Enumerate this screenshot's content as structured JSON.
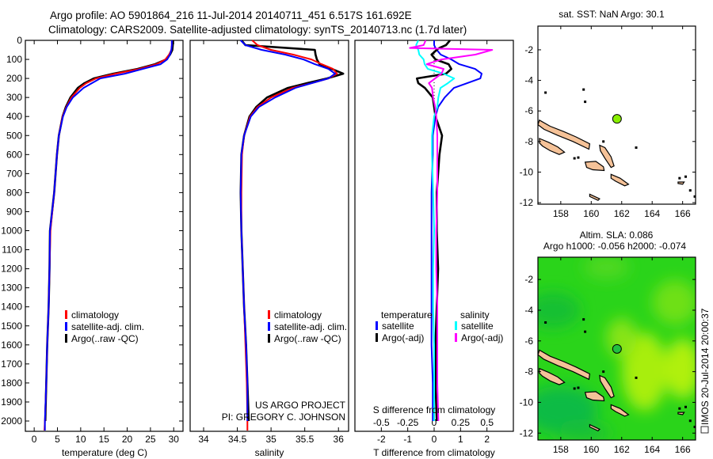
{
  "header": {
    "title_line1": "Argo profile: AO 5901864_216 11-Jul-2014 20140711_451 6.517S 161.692E",
    "title_line2": "Climatology: CARS2009. Satellite-adjusted climatology: synTS_20140713.nc (1.7d later)"
  },
  "credits": {
    "project": "US ARGO PROJECT",
    "pi": "PI: GREGORY C. JOHNSON",
    "imos_stamp": "IMOS 20-Jul-2014 20:00:37"
  },
  "colors": {
    "climatology": "#ff0000",
    "satellite": "#0000ff",
    "argo": "#000000",
    "sal_satellite": "#00ffff",
    "sal_argo": "#ff00ff",
    "land": "#f5c298",
    "argo_point": "#88ee00"
  },
  "chart_data": [
    {
      "type": "line",
      "title": "",
      "xlabel": "temperature (deg C)",
      "ylabel": "",
      "xlim": [
        -1.9,
        32
      ],
      "ylim": [
        2054,
        0
      ],
      "xticks": [
        "0",
        "5",
        "10",
        "15",
        "20",
        "25",
        "30"
      ],
      "yticks": [
        "0",
        "100",
        "200",
        "300",
        "400",
        "500",
        "600",
        "700",
        "800",
        "900",
        "1000",
        "1100",
        "1200",
        "1300",
        "1400",
        "1500",
        "1600",
        "1700",
        "1800",
        "1900",
        "2000"
      ],
      "legend": [
        "climatology",
        "satellite-adj. clim.",
        "Argo(..raw -QC)"
      ],
      "depth": [
        0,
        25,
        50,
        75,
        100,
        125,
        150,
        175,
        200,
        225,
        250,
        300,
        350,
        400,
        500,
        600,
        800,
        1000,
        1200,
        1400,
        1600,
        1800,
        2000,
        2050
      ],
      "series": [
        {
          "name": "Argo(..raw -QC)",
          "color": "#000000",
          "values": [
            29.8,
            29.8,
            29.7,
            29.2,
            28.4,
            26,
            22.2,
            17,
            12.8,
            10.8,
            9.4,
            7.8,
            6.8,
            6.1,
            5.3,
            4.9,
            4.3,
            3.4,
            3.3,
            3.1,
            2.8,
            2.6,
            2.4,
            null
          ]
        },
        {
          "name": "climatology",
          "color": "#ff0000",
          "values": [
            29.6,
            29.6,
            29.5,
            29,
            28.2,
            26.3,
            22.6,
            17.5,
            13.3,
            11.2,
            9.8,
            8.0,
            6.9,
            6.1,
            5.3,
            4.9,
            4.3,
            3.5,
            3.3,
            3.1,
            2.8,
            2.6,
            2.3,
            2.2
          ]
        },
        {
          "name": "satellite-adj. clim.",
          "color": "#0000ff",
          "values": [
            29.6,
            29.6,
            29.5,
            29.2,
            28.6,
            27.2,
            23.3,
            19.5,
            14.2,
            12.4,
            10.6,
            8.3,
            7.0,
            6.2,
            5.3,
            4.9,
            4.3,
            3.4,
            3.3,
            3.1,
            2.8,
            2.6,
            2.3,
            2.3
          ]
        }
      ]
    },
    {
      "type": "line",
      "xlabel": "salinity",
      "xlim": [
        33.8,
        36.15
      ],
      "ylim": [
        2054,
        0
      ],
      "xticks": [
        "34",
        "34.5",
        "35",
        "35.5",
        "36"
      ],
      "legend": [
        "climatology",
        "satellite-adj. clim.",
        "Argo(..raw -QC)"
      ],
      "depth": [
        0,
        25,
        50,
        75,
        100,
        125,
        150,
        175,
        200,
        225,
        250,
        300,
        350,
        400,
        500,
        600,
        800,
        1000,
        1200,
        1400,
        1600,
        1800,
        2000,
        2050
      ],
      "series": [
        {
          "name": "Argo(..raw -QC)",
          "color": "#000000",
          "values": [
            34.56,
            34.62,
            35.65,
            35.66,
            35.68,
            35.72,
            35.9,
            36.07,
            35.83,
            35.53,
            35.25,
            34.94,
            34.78,
            34.68,
            34.6,
            34.56,
            34.55,
            34.56,
            34.58,
            34.6,
            34.63,
            34.65,
            34.67,
            null
          ]
        },
        {
          "name": "climatology",
          "color": "#ff0000",
          "values": [
            34.72,
            34.8,
            35.0,
            35.33,
            35.6,
            35.75,
            35.92,
            35.98,
            35.85,
            35.6,
            35.32,
            35.0,
            34.8,
            34.69,
            34.6,
            34.57,
            34.56,
            34.56,
            34.58,
            34.6,
            34.62,
            34.64,
            34.65,
            34.65
          ]
        },
        {
          "name": "satellite-adj. clim.",
          "color": "#0000ff",
          "values": [
            34.55,
            34.62,
            34.86,
            35.21,
            35.48,
            35.65,
            35.85,
            35.95,
            35.85,
            35.6,
            35.36,
            35.06,
            34.82,
            34.7,
            34.6,
            34.56,
            34.55,
            34.56,
            34.58,
            34.6,
            34.63,
            34.65,
            34.65,
            null
          ]
        }
      ]
    },
    {
      "type": "line",
      "xlabel": "T difference from climatology",
      "x2label": "S difference from climatology",
      "xlim": [
        -3,
        3
      ],
      "x2lim": [
        -0.75,
        0.75
      ],
      "ylim": [
        2054,
        0
      ],
      "xticks": [
        "-2",
        "-1",
        "0",
        "1",
        "2"
      ],
      "x2ticks": [
        "-0.5",
        "-0.25",
        "0",
        "0.25",
        "0.5"
      ],
      "legend": {
        "temperature_header": "temperature",
        "salinity_header": "salinity",
        "t_sat": "satellite",
        "t_argo": "Argo(-adj)",
        "s_sat": "satellite",
        "s_argo": "Argo(-adj)"
      },
      "depth": [
        0,
        25,
        40,
        50,
        75,
        100,
        125,
        150,
        175,
        200,
        225,
        250,
        300,
        350,
        400,
        500,
        600,
        800,
        1000,
        1200,
        1400,
        1600,
        1800,
        2000
      ],
      "series": [
        {
          "name": "temperature satellite",
          "axis": "T",
          "color": "#0000ff",
          "values": [
            0,
            0,
            0.05,
            0.1,
            0.25,
            0.65,
            0.95,
            1.55,
            1.8,
            1.75,
            1.25,
            0.75,
            0.4,
            0.15,
            0.05,
            -0.05,
            -0.05,
            -0.1,
            -0.1,
            -0.1,
            -0.1,
            -0.1,
            -0.05,
            -0.05
          ]
        },
        {
          "name": "temperature Argo(-adj)",
          "axis": "T",
          "color": "#000000",
          "values": [
            0.6,
            0.45,
            0.2,
            0.1,
            -0.1,
            0.05,
            0.55,
            0.65,
            0.45,
            -0.65,
            -0.6,
            -0.35,
            -0.05,
            0,
            0.05,
            0.3,
            0.2,
            0.1,
            0.1,
            0.15,
            0.1,
            0.05,
            0.05,
            0.1
          ]
        },
        {
          "name": "salinity satellite",
          "axis": "S",
          "color": "#00ffff",
          "values": [
            -0.15,
            -0.17,
            -0.16,
            -0.15,
            -0.14,
            -0.1,
            -0.09,
            -0.06,
            0.09,
            0.19,
            0.13,
            0.06,
            0.04,
            0.03,
            0,
            -0.02,
            -0.02,
            -0.01,
            0,
            -0.01,
            -0.01,
            0,
            0,
            0
          ]
        },
        {
          "name": "salinity Argo(-adj)",
          "axis": "S",
          "color": "#ff00ff",
          "values": [
            -0.08,
            -0.1,
            -0.23,
            0.55,
            0.39,
            0.07,
            -0.07,
            0.09,
            0.07,
            0.01,
            -0.05,
            -0.02,
            -0.01,
            0.01,
            0.02,
            0.03,
            0.03,
            0.03,
            0.02,
            0.02,
            0.03,
            0.03,
            0.03,
            0.04
          ]
        }
      ]
    },
    {
      "type": "scatter",
      "title": "sat. SST: NaN Argo: 30.1",
      "xlim": [
        156.5,
        166.85
      ],
      "ylim": [
        -12.1,
        -0.45
      ],
      "xticks": [
        "158",
        "160",
        "162",
        "164",
        "166"
      ],
      "yticks": [
        "-2",
        "-4",
        "-6",
        "-8",
        "-10",
        "-12"
      ],
      "point": {
        "lon": 161.692,
        "lat": -6.517
      }
    },
    {
      "type": "heatmap",
      "title": "Altim. SLA: 0.086",
      "subtitle": "Argo h1000: -0.056 h2000: -0.074",
      "xlim": [
        156.5,
        166.85
      ],
      "ylim": [
        -12.45,
        -0.55
      ],
      "xticks": [
        "158",
        "160",
        "162",
        "164",
        "166"
      ],
      "yticks": [
        "-2",
        "-4",
        "-6",
        "-8",
        "-10",
        "-12"
      ],
      "point": {
        "lon": 161.692,
        "lat": -6.517
      }
    }
  ]
}
